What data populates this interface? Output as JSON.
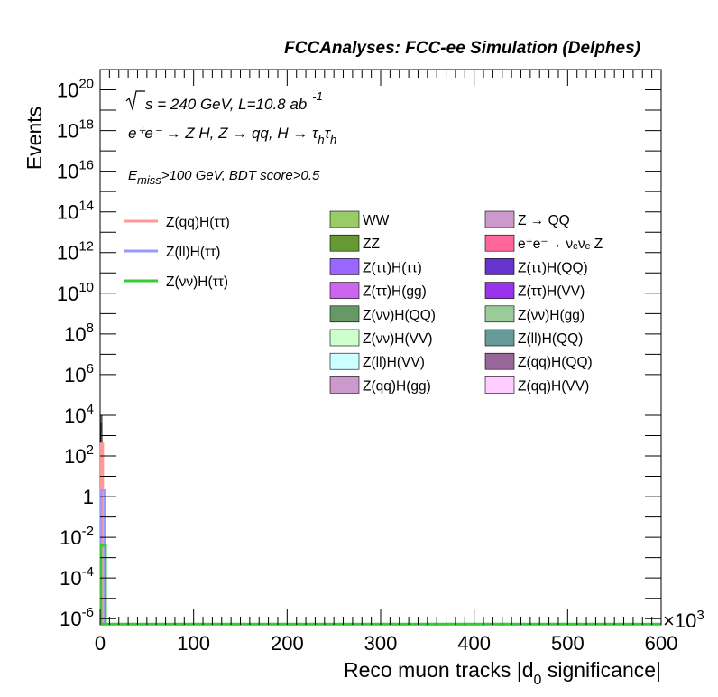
{
  "chart_data": {
    "type": "bar",
    "title": "FCCAnalyses: FCC-ee Simulation (Delphes)",
    "ylabel": "Events",
    "xlabel_main": "Reco muon tracks |d",
    "xlabel_sub": "0",
    "xlabel_tail": " significance|",
    "y_scale": "log",
    "xlim": [
      0,
      600000
    ],
    "ylim_exponents": [
      -6.3,
      21
    ],
    "x_exponent_label": "×10",
    "x_exponent_power": "3",
    "x_ticks": [
      "0",
      "100",
      "200",
      "300",
      "400",
      "500",
      "600"
    ],
    "y_tick_labels": [
      {
        "base": "10",
        "exp": "-6",
        "pos": -6
      },
      {
        "base": "10",
        "exp": "-4",
        "pos": -4
      },
      {
        "base": "10",
        "exp": "-2",
        "pos": -2
      },
      {
        "base": "1",
        "exp": "",
        "pos": 0
      },
      {
        "base": "10",
        "exp": "2",
        "pos": 2
      },
      {
        "base": "10",
        "exp": "4",
        "pos": 4
      },
      {
        "base": "10",
        "exp": "6",
        "pos": 6
      },
      {
        "base": "10",
        "exp": "8",
        "pos": 8
      },
      {
        "base": "10",
        "exp": "10",
        "pos": 10
      },
      {
        "base": "10",
        "exp": "12",
        "pos": 12
      },
      {
        "base": "10",
        "exp": "14",
        "pos": 14
      },
      {
        "base": "10",
        "exp": "16",
        "pos": 16
      },
      {
        "base": "10",
        "exp": "18",
        "pos": 18
      },
      {
        "base": "10",
        "exp": "20",
        "pos": 20
      }
    ],
    "annotations": {
      "energy_pre": "s = 240 GeV, L=10.8 ab",
      "energy_sup": "-1",
      "process": "e⁺e⁻ → Z H, Z → qq, H → τ",
      "process_sub": "h",
      "process_tau2": "τ",
      "cuts_e": "E",
      "cuts_sub": "miss",
      "cuts_rest": ">100 GeV, BDT score>0.5"
    },
    "stack_first_bin": {
      "x_range": [
        0,
        2000
      ],
      "segments": [
        {
          "name": "Z(qq)H(gg)",
          "top": 2.0,
          "color": "#cc99cc"
        },
        {
          "name": "Z(ττ)H(gg)",
          "top": 1.4,
          "color": "#cc66ee"
        },
        {
          "name": "Z(ττ)H(ττ)",
          "top": 0.7,
          "color": "#9966ff"
        },
        {
          "name": "ZZ",
          "top": 3.6,
          "color": "#669933"
        },
        {
          "name": "Z → QQ",
          "top": 4.0,
          "color": "#cc99cc"
        },
        {
          "name": "WW",
          "top": 3.2,
          "color": "#99cc66"
        }
      ]
    },
    "signal_series": [
      {
        "name": "Z(qq)H(ττ)",
        "color": "#ff9999",
        "bins": [
          {
            "x0": 0,
            "x1": 3000,
            "y_exp": 2.6
          }
        ]
      },
      {
        "name": "Z(ll)H(ττ)",
        "color": "#9999ff",
        "bins": [
          {
            "x0": 0,
            "x1": 5000,
            "y_exp": 0.3
          }
        ]
      },
      {
        "name": "Z(νν)H(ττ)",
        "color": "#33cc33",
        "bins": [
          {
            "x0": 0,
            "x1": 6000,
            "y_exp": -2.4
          }
        ]
      }
    ],
    "legend_lines": [
      {
        "label": "Z(qq)H(ττ)",
        "color": "#ff9999"
      },
      {
        "label": "Z(ll)H(ττ)",
        "color": "#9999ff"
      },
      {
        "label": "Z(νν)H(ττ)",
        "color": "#33cc33"
      }
    ],
    "legend_boxes": [
      {
        "label": "WW",
        "color": "#99cc66"
      },
      {
        "label": "Z → QQ",
        "color": "#cc99cc"
      },
      {
        "label": "ZZ",
        "color": "#669933"
      },
      {
        "label": "e⁺e⁻→ νₑνₑ Z",
        "color": "#ff6699"
      },
      {
        "label": "Z(ττ)H(ττ)",
        "color": "#9966ff"
      },
      {
        "label": "Z(ττ)H(QQ)",
        "color": "#6633cc"
      },
      {
        "label": "Z(ττ)H(gg)",
        "color": "#cc66ee"
      },
      {
        "label": "Z(ττ)H(VV)",
        "color": "#9933ee"
      },
      {
        "label": "Z(νν)H(QQ)",
        "color": "#669966"
      },
      {
        "label": "Z(νν)H(gg)",
        "color": "#99cc99"
      },
      {
        "label": "Z(νν)H(VV)",
        "color": "#ccffcc"
      },
      {
        "label": "Z(ll)H(QQ)",
        "color": "#669999"
      },
      {
        "label": "Z(ll)H(VV)",
        "color": "#ccffff"
      },
      {
        "label": "Z(qq)H(QQ)",
        "color": "#996699"
      },
      {
        "label": "Z(qq)H(gg)",
        "color": "#cc99cc"
      },
      {
        "label": "Z(qq)H(VV)",
        "color": "#ffccff"
      }
    ]
  }
}
